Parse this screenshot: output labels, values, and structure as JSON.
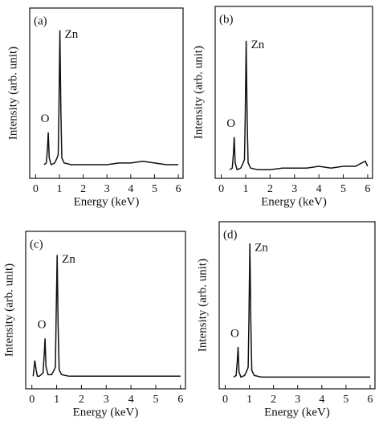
{
  "chart_data": [
    {
      "type": "line",
      "title": "(a)",
      "x_label": "Energy (keV)",
      "y_label": "Intensity (arb. unit)",
      "annotations": [
        "Zn",
        "O"
      ],
      "x": [
        0.35,
        0.45,
        0.5,
        0.53,
        0.57,
        0.65,
        0.8,
        0.9,
        0.95,
        0.98,
        1.02,
        1.06,
        1.1,
        1.2,
        1.5,
        2,
        2.5,
        3,
        3.5,
        4,
        4.5,
        5,
        5.5,
        6
      ],
      "values": [
        8,
        9,
        18,
        27,
        12,
        8,
        9,
        12,
        14,
        40,
        87,
        40,
        12,
        9,
        8,
        8,
        8,
        8,
        9,
        9,
        10,
        9,
        8,
        8
      ],
      "color": "#111111",
      "xlim": [
        -0.25,
        6.2
      ],
      "ylim": [
        0,
        100
      ],
      "xticks": [
        0,
        1,
        2,
        3,
        4,
        5,
        6
      ]
    },
    {
      "type": "line",
      "title": "(b)",
      "x_label": "Energy (keV)",
      "y_label": "Intensity (arb. unit)",
      "annotations": [
        "Zn",
        "O"
      ],
      "x": [
        0.35,
        0.45,
        0.5,
        0.53,
        0.57,
        0.65,
        0.8,
        0.9,
        0.95,
        0.98,
        1.02,
        1.06,
        1.1,
        1.2,
        1.5,
        2,
        2.5,
        3,
        3.5,
        4,
        4.5,
        5,
        5.5,
        5.9,
        6
      ],
      "values": [
        5,
        6,
        15,
        24,
        9,
        5,
        6,
        9,
        11,
        35,
        80,
        35,
        9,
        6,
        5,
        5,
        6,
        6,
        6,
        7,
        6,
        7,
        7,
        10,
        7
      ],
      "color": "#111111",
      "xlim": [
        -0.25,
        6.2
      ],
      "ylim": [
        0,
        100
      ],
      "xticks": [
        0,
        1,
        2,
        3,
        4,
        5,
        6
      ]
    },
    {
      "type": "line",
      "title": "(c)",
      "x_label": "Energy (keV)",
      "y_label": "Intensity (arb. unit)",
      "annotations": [
        "Zn",
        "O"
      ],
      "x": [
        0.05,
        0.12,
        0.17,
        0.22,
        0.3,
        0.45,
        0.5,
        0.53,
        0.57,
        0.65,
        0.8,
        0.9,
        0.95,
        0.98,
        1.02,
        1.06,
        1.1,
        1.2,
        1.5,
        2,
        2.5,
        3,
        3.5,
        4,
        4.5,
        5,
        5.5,
        6
      ],
      "values": [
        8,
        18,
        12,
        8,
        8,
        10,
        22,
        32,
        14,
        9,
        9,
        12,
        14,
        45,
        85,
        40,
        12,
        9,
        8,
        8,
        8,
        8,
        8,
        8,
        8,
        8,
        8,
        8
      ],
      "color": "#111111",
      "xlim": [
        -0.25,
        6.2
      ],
      "ylim": [
        0,
        100
      ],
      "xticks": [
        0,
        1,
        2,
        3,
        4,
        5,
        6
      ]
    },
    {
      "type": "line",
      "title": "(d)",
      "x_label": "Energy (keV)",
      "y_label": "Intensity (arb. unit)",
      "annotations": [
        "Zn",
        "O"
      ],
      "x": [
        0.35,
        0.45,
        0.5,
        0.53,
        0.57,
        0.65,
        0.8,
        0.9,
        0.95,
        0.98,
        1.02,
        1.06,
        1.1,
        1.2,
        1.5,
        2,
        2.5,
        3,
        3.5,
        4,
        4.5,
        5,
        5.5,
        6
      ],
      "values": [
        7,
        8,
        17,
        25,
        10,
        7,
        8,
        11,
        13,
        40,
        87,
        40,
        11,
        8,
        7,
        7,
        7,
        7,
        7,
        7,
        7,
        7,
        7,
        7
      ],
      "color": "#111111",
      "xlim": [
        -0.25,
        6.2
      ],
      "ylim": [
        0,
        100
      ],
      "xticks": [
        0,
        1,
        2,
        3,
        4,
        5,
        6
      ]
    }
  ]
}
